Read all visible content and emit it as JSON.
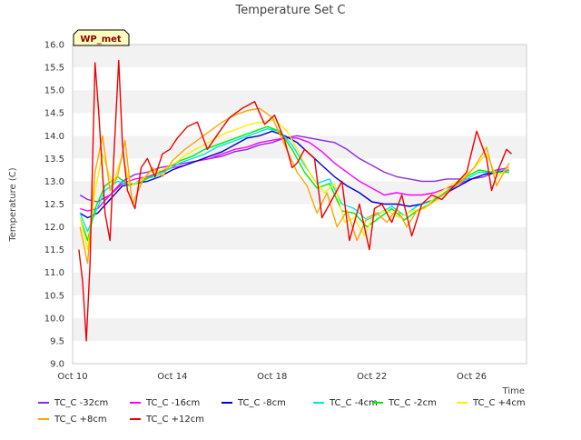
{
  "chart_data": {
    "type": "line",
    "title": "Temperature Set C",
    "xlabel": "Time",
    "ylabel": "Temperature (C)",
    "site_badge": "WP_met",
    "ylim": [
      9.0,
      16.0
    ],
    "yticks": [
      9.0,
      9.5,
      10.0,
      10.5,
      11.0,
      11.5,
      12.0,
      12.5,
      13.0,
      13.5,
      14.0,
      14.5,
      15.0,
      15.5,
      16.0
    ],
    "ytick_labels": [
      "9.0",
      "9.5",
      "10.0",
      "10.5",
      "11.0",
      "11.5",
      "12.0",
      "12.5",
      "13.0",
      "13.5",
      "14.0",
      "14.5",
      "15.0",
      "15.5",
      "16.0"
    ],
    "xlim": [
      10,
      28.2
    ],
    "xticks": [
      10,
      14,
      18,
      22,
      26
    ],
    "xtick_labels": [
      "Oct 10",
      "Oct 14",
      "Oct 18",
      "Oct 22",
      "Oct 26"
    ],
    "grid": "horizontal bands",
    "legend_position": "bottom",
    "series": [
      {
        "name": "TC_C -32cm",
        "color": "#8a2be2",
        "x": [
          10.3,
          10.6,
          11.0,
          11.5,
          12.0,
          12.5,
          13.0,
          13.5,
          14.0,
          14.5,
          15.0,
          15.5,
          16.0,
          16.5,
          17.0,
          17.5,
          18.0,
          18.5,
          19.0,
          19.5,
          20.0,
          20.5,
          21.0,
          21.5,
          22.0,
          22.5,
          23.0,
          23.5,
          24.0,
          24.5,
          25.0,
          25.5,
          26.0,
          26.5,
          27.0,
          27.5
        ],
        "y": [
          12.7,
          12.6,
          12.55,
          12.7,
          13.0,
          13.15,
          13.2,
          13.3,
          13.35,
          13.4,
          13.45,
          13.5,
          13.55,
          13.65,
          13.7,
          13.8,
          13.85,
          13.95,
          14.0,
          13.95,
          13.9,
          13.85,
          13.7,
          13.5,
          13.35,
          13.2,
          13.1,
          13.05,
          13.0,
          13.0,
          13.05,
          13.05,
          13.05,
          13.1,
          13.2,
          13.2
        ]
      },
      {
        "name": "TC_C -16cm",
        "color": "#ff00ff",
        "x": [
          10.3,
          10.6,
          11.0,
          11.5,
          12.0,
          12.5,
          13.0,
          13.5,
          14.0,
          14.5,
          15.0,
          15.5,
          16.0,
          16.5,
          17.0,
          17.5,
          18.0,
          18.5,
          19.0,
          19.5,
          20.0,
          20.5,
          21.0,
          21.5,
          22.0,
          22.5,
          23.0,
          23.5,
          24.0,
          24.5,
          25.0,
          25.5,
          26.0,
          26.5,
          27.0,
          27.5
        ],
        "y": [
          12.4,
          12.35,
          12.4,
          12.7,
          12.95,
          13.05,
          13.1,
          13.2,
          13.3,
          13.35,
          13.45,
          13.5,
          13.6,
          13.7,
          13.75,
          13.85,
          13.9,
          13.95,
          13.95,
          13.85,
          13.65,
          13.4,
          13.2,
          13.0,
          12.85,
          12.7,
          12.75,
          12.7,
          12.7,
          12.75,
          12.85,
          12.95,
          13.05,
          13.15,
          13.25,
          13.3
        ]
      },
      {
        "name": "TC_C -8cm",
        "color": "#0000cd",
        "x": [
          10.3,
          10.6,
          11.0,
          11.5,
          12.0,
          12.5,
          13.0,
          13.5,
          14.0,
          14.5,
          15.0,
          15.5,
          16.0,
          16.5,
          17.0,
          17.5,
          18.0,
          18.5,
          19.0,
          19.5,
          20.0,
          20.5,
          21.0,
          21.5,
          22.0,
          22.5,
          23.0,
          23.5,
          24.0,
          24.5,
          25.0,
          25.5,
          26.0,
          26.5,
          27.0,
          27.5
        ],
        "y": [
          12.3,
          12.2,
          12.3,
          12.6,
          12.9,
          12.95,
          13.0,
          13.1,
          13.25,
          13.35,
          13.45,
          13.55,
          13.65,
          13.8,
          13.95,
          14.0,
          14.1,
          14.0,
          13.85,
          13.6,
          13.35,
          13.1,
          12.9,
          12.75,
          12.55,
          12.5,
          12.5,
          12.45,
          12.5,
          12.6,
          12.75,
          12.9,
          13.05,
          13.15,
          13.2,
          13.25
        ]
      },
      {
        "name": "TC_C -4cm",
        "color": "#00e5ee",
        "x": [
          10.3,
          10.6,
          10.9,
          11.3,
          11.8,
          12.3,
          12.8,
          13.3,
          13.8,
          14.3,
          14.8,
          15.3,
          15.8,
          16.3,
          16.8,
          17.3,
          17.8,
          18.3,
          18.8,
          19.3,
          19.8,
          20.3,
          20.8,
          21.3,
          21.8,
          22.3,
          22.8,
          23.3,
          23.8,
          24.3,
          24.8,
          25.3,
          25.8,
          26.3,
          26.8,
          27.3,
          27.5
        ],
        "y": [
          12.3,
          11.9,
          12.3,
          12.8,
          13.0,
          12.9,
          13.05,
          13.1,
          13.25,
          13.4,
          13.5,
          13.6,
          13.75,
          13.85,
          13.95,
          14.05,
          14.15,
          14.1,
          13.8,
          13.35,
          12.95,
          13.05,
          12.5,
          12.4,
          12.15,
          12.3,
          12.45,
          12.25,
          12.45,
          12.55,
          12.7,
          12.9,
          13.05,
          13.2,
          13.2,
          13.25,
          13.25
        ]
      },
      {
        "name": "TC_C -2cm",
        "color": "#00ee00",
        "x": [
          10.3,
          10.6,
          10.9,
          11.3,
          11.8,
          12.3,
          12.8,
          13.3,
          13.8,
          14.3,
          14.8,
          15.3,
          15.8,
          16.3,
          16.8,
          17.3,
          17.8,
          18.3,
          18.8,
          19.3,
          19.8,
          20.3,
          20.8,
          21.3,
          21.8,
          22.3,
          22.8,
          23.3,
          23.8,
          24.3,
          24.8,
          25.3,
          25.8,
          26.3,
          26.8,
          27.3,
          27.5
        ],
        "y": [
          12.2,
          11.7,
          12.4,
          12.9,
          13.1,
          12.9,
          13.0,
          13.15,
          13.3,
          13.45,
          13.55,
          13.7,
          13.8,
          13.9,
          14.0,
          14.1,
          14.2,
          14.1,
          13.7,
          13.2,
          12.85,
          12.95,
          12.35,
          12.3,
          12.0,
          12.2,
          12.4,
          12.15,
          12.35,
          12.5,
          12.7,
          12.9,
          13.1,
          13.25,
          13.2,
          13.2,
          13.2
        ]
      },
      {
        "name": "TC_C +4cm",
        "color": "#ffee00",
        "x": [
          10.3,
          10.6,
          10.9,
          11.2,
          11.6,
          12.0,
          12.3,
          12.7,
          13.1,
          13.6,
          14.1,
          14.6,
          15.1,
          15.6,
          16.1,
          16.6,
          17.1,
          17.6,
          18.1,
          18.6,
          19.1,
          19.6,
          20.1,
          20.5,
          20.9,
          21.3,
          21.7,
          22.1,
          22.6,
          23.1,
          23.6,
          24.1,
          24.6,
          25.1,
          25.6,
          26.1,
          26.6,
          27.0,
          27.5
        ],
        "y": [
          12.2,
          11.5,
          12.8,
          13.6,
          12.9,
          13.6,
          12.9,
          13.0,
          13.2,
          13.25,
          13.4,
          13.6,
          13.75,
          13.9,
          14.05,
          14.15,
          14.25,
          14.3,
          14.35,
          14.1,
          13.6,
          13.1,
          12.75,
          12.95,
          12.1,
          12.2,
          11.8,
          12.3,
          12.35,
          12.2,
          12.35,
          12.4,
          12.7,
          12.9,
          13.05,
          13.3,
          13.6,
          13.1,
          13.3
        ]
      },
      {
        "name": "TC_C +8cm",
        "color": "#ffa500",
        "x": [
          10.3,
          10.6,
          10.9,
          11.2,
          11.5,
          11.8,
          12.1,
          12.4,
          12.8,
          13.2,
          13.6,
          14.0,
          14.5,
          15.0,
          15.5,
          16.0,
          16.5,
          17.0,
          17.5,
          18.0,
          18.5,
          19.0,
          19.4,
          19.8,
          20.2,
          20.6,
          21.0,
          21.4,
          21.8,
          22.2,
          22.6,
          23.0,
          23.4,
          23.8,
          24.2,
          24.6,
          25.1,
          25.6,
          26.1,
          26.6,
          27.0,
          27.5
        ],
        "y": [
          12.0,
          11.2,
          13.2,
          14.0,
          12.8,
          13.1,
          13.9,
          12.5,
          13.0,
          13.3,
          13.1,
          13.45,
          13.7,
          13.9,
          14.1,
          14.3,
          14.45,
          14.55,
          14.6,
          14.4,
          13.8,
          13.2,
          12.9,
          12.3,
          12.75,
          12.0,
          12.35,
          11.7,
          12.2,
          12.3,
          12.1,
          12.4,
          12.0,
          12.35,
          12.45,
          12.6,
          12.8,
          13.0,
          13.3,
          13.75,
          12.9,
          13.4
        ]
      },
      {
        "name": "TC_C +12cm",
        "color": "#ee0000",
        "x": [
          10.25,
          10.4,
          10.55,
          10.7,
          10.9,
          11.05,
          11.3,
          11.5,
          11.65,
          11.85,
          12.0,
          12.2,
          12.5,
          12.75,
          13.0,
          13.3,
          13.6,
          13.9,
          14.2,
          14.6,
          15.0,
          15.4,
          15.9,
          16.3,
          16.8,
          17.3,
          17.7,
          18.1,
          18.5,
          18.8,
          19.0,
          19.3,
          19.7,
          20.0,
          20.4,
          20.8,
          21.1,
          21.5,
          21.9,
          22.1,
          22.4,
          22.8,
          23.2,
          23.6,
          24.0,
          24.4,
          24.8,
          25.3,
          25.8,
          26.2,
          26.6,
          26.8,
          27.1,
          27.4,
          27.6
        ],
        "y": [
          11.5,
          10.8,
          9.5,
          11.2,
          15.6,
          14.5,
          12.3,
          11.7,
          13.5,
          15.65,
          13.8,
          12.8,
          12.4,
          13.3,
          13.5,
          13.1,
          13.6,
          13.7,
          13.95,
          14.2,
          14.3,
          13.7,
          14.1,
          14.4,
          14.6,
          14.75,
          14.25,
          14.45,
          13.9,
          13.3,
          13.4,
          13.7,
          13.5,
          12.2,
          12.6,
          13.0,
          11.7,
          12.5,
          11.5,
          12.4,
          12.5,
          12.1,
          12.7,
          11.8,
          12.5,
          12.7,
          12.6,
          12.9,
          13.2,
          14.1,
          13.5,
          12.8,
          13.3,
          13.7,
          13.6
        ]
      }
    ]
  }
}
